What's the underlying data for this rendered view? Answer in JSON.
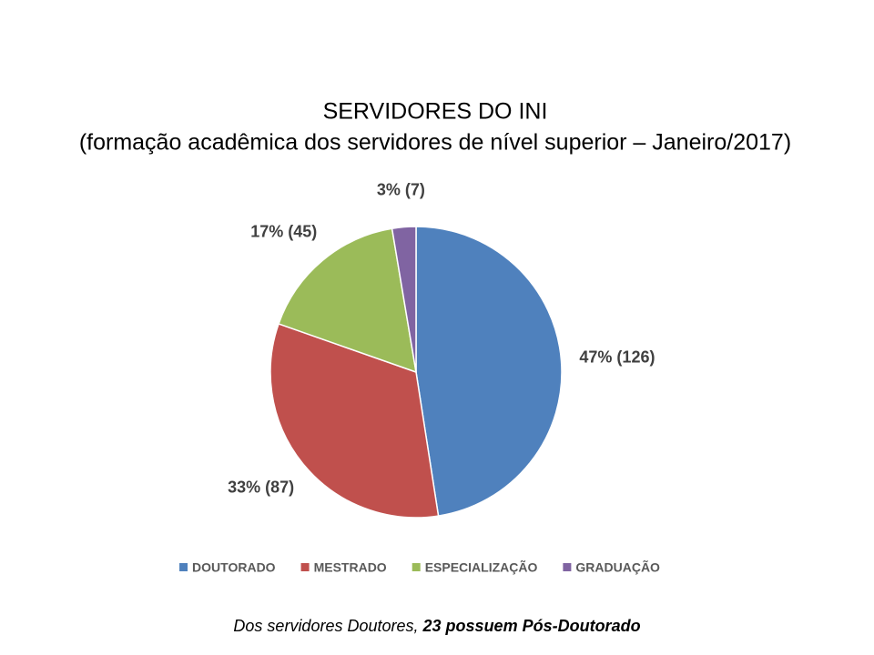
{
  "chart_data": {
    "type": "pie",
    "title": "SERVIDORES DO INI",
    "subtitle": "(formação acadêmica dos servidores de nível superior – Janeiro/2017)",
    "categories": [
      "DOUTORADO",
      "MESTRADO",
      "ESPECIALIZAÇÃO",
      "GRADUAÇÃO"
    ],
    "values": [
      126,
      87,
      45,
      7
    ],
    "value_labels": [
      "47% (126)",
      "33% (87)",
      "17% (45)",
      "3% (7)"
    ],
    "colors": [
      "#4f81bd",
      "#c0504d",
      "#9bbb59",
      "#8064a2"
    ],
    "legend": "bottom"
  },
  "footnote": {
    "text": "Dos servidores Doutores,",
    "emphasis": "23 possuem Pós-Doutorado"
  }
}
